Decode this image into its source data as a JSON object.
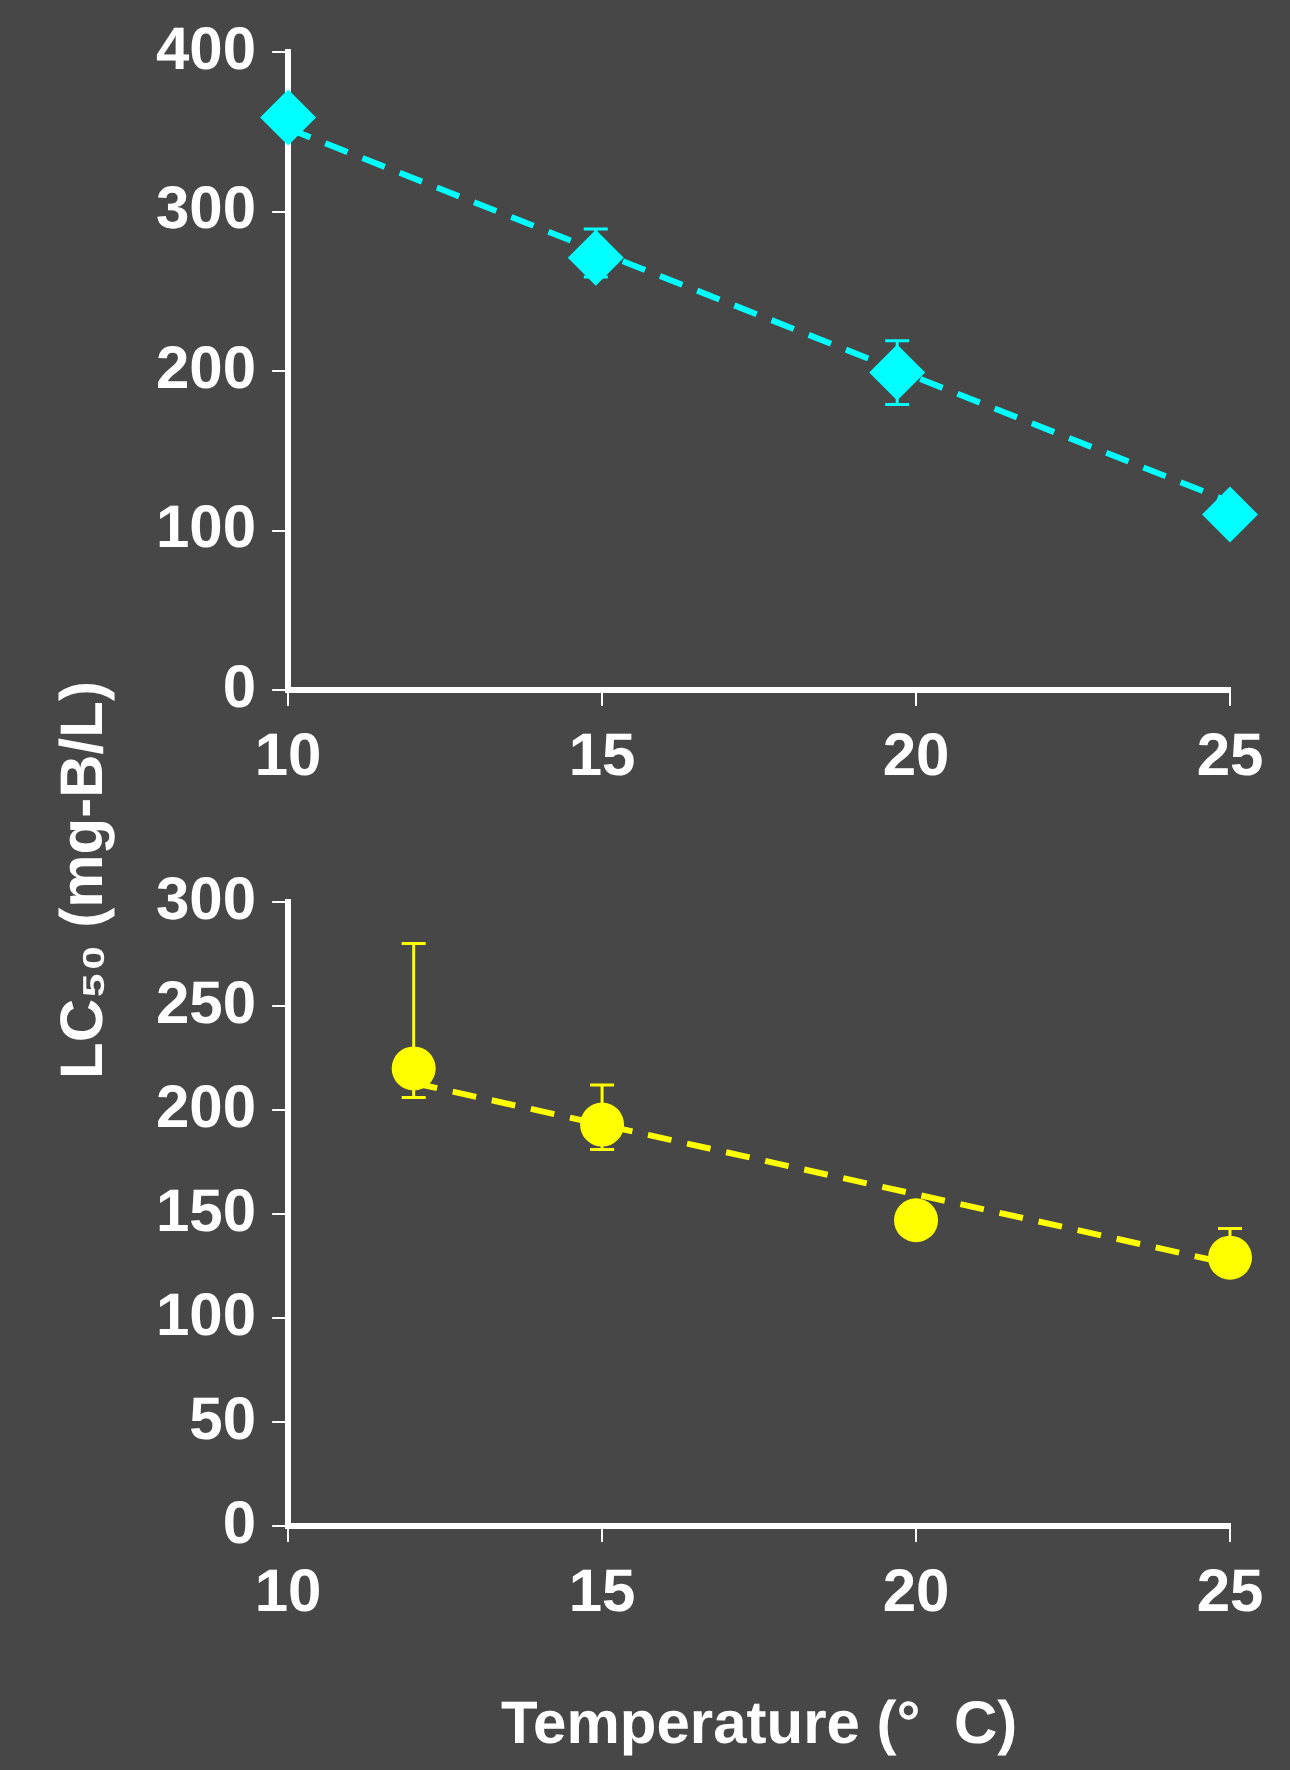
{
  "chart_data": [
    {
      "type": "scatter",
      "ylabel": "LC₅₀ (mg-B/L)",
      "xlim": [
        10,
        25
      ],
      "xticks": [
        10,
        15,
        20,
        25
      ],
      "ylim": [
        0,
        400
      ],
      "yticks": [
        0,
        100,
        200,
        300,
        400
      ],
      "grid": false,
      "series": [
        {
          "color": "#00ffff",
          "marker": "diamond",
          "x": [
            10,
            14.9,
            19.7,
            25
          ],
          "values": [
            359,
            271,
            199,
            110
          ],
          "errors": [
            null,
            [
              259,
              289
            ],
            [
              179,
              219
            ],
            null
          ]
        },
        {
          "type": "line",
          "color": "#00ffff",
          "marker": "none",
          "line_style": "dashed",
          "x": [
            10,
            25
          ],
          "values": [
            352,
            118
          ]
        }
      ]
    },
    {
      "type": "scatter",
      "xlabel": "Temperature (°  C)",
      "xlim": [
        10,
        25
      ],
      "xticks": [
        10,
        15,
        20,
        25
      ],
      "ylim": [
        0,
        300
      ],
      "yticks": [
        0,
        50,
        100,
        150,
        200,
        250,
        300
      ],
      "grid": false,
      "series": [
        {
          "color": "#ffff00",
          "marker": "circle",
          "x": [
            12,
            15,
            20,
            25
          ],
          "values": [
            220,
            193,
            147,
            129
          ],
          "errors": [
            [
              206,
              280
            ],
            [
              181,
              212
            ],
            null,
            [
              129,
              143
            ]
          ]
        },
        {
          "type": "line",
          "color": "#ffff00",
          "marker": "none",
          "line_style": "dashed",
          "x": [
            12,
            25
          ],
          "values": [
            213,
            126
          ]
        }
      ]
    }
  ]
}
